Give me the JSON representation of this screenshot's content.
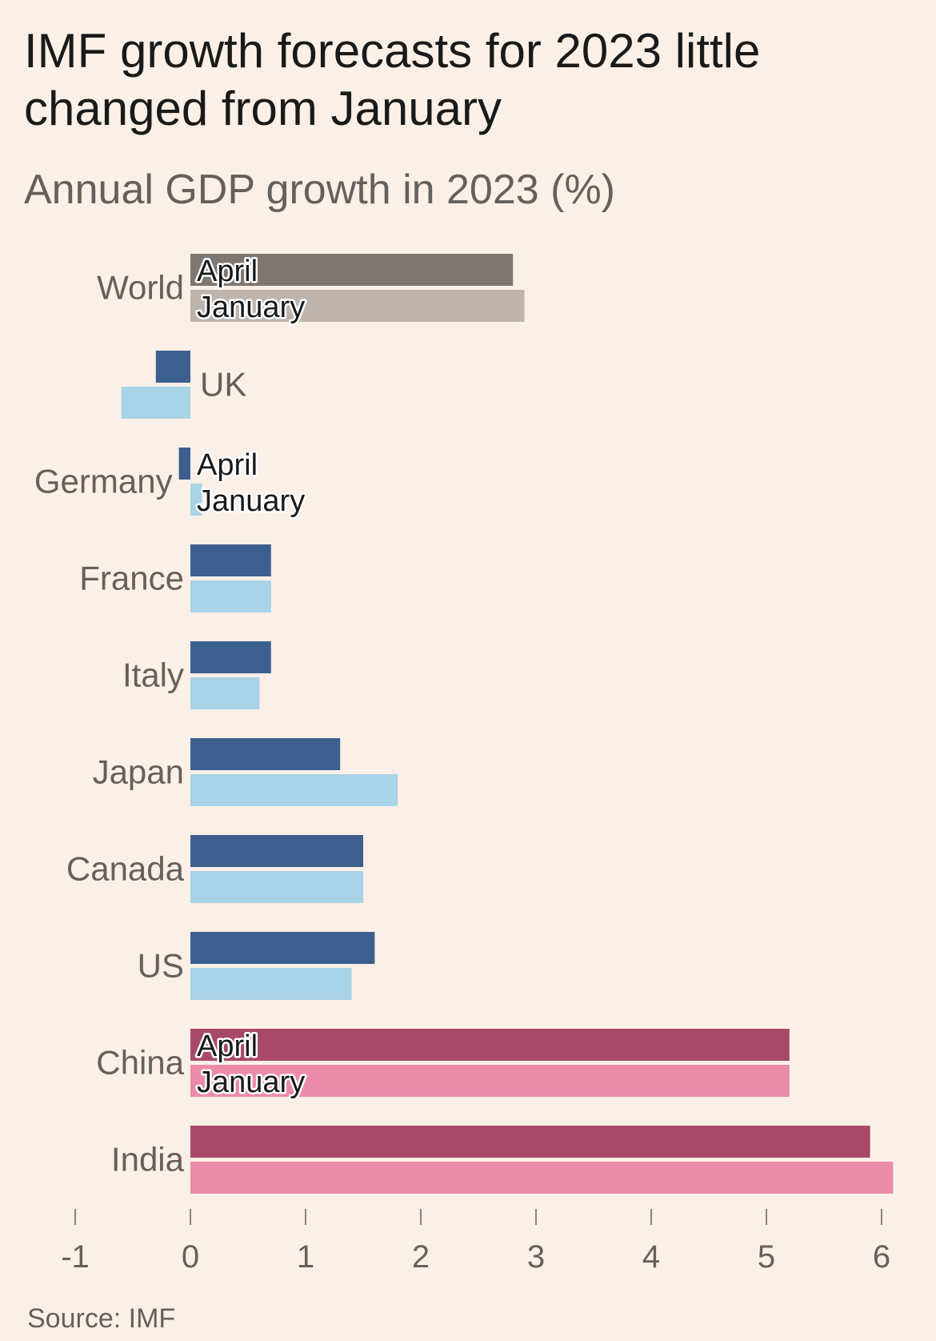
{
  "chart_data": {
    "type": "bar",
    "orientation": "horizontal",
    "title": "IMF growth forecasts for 2023 little changed from January",
    "subtitle": "Annual GDP growth in 2023 (%)",
    "source": "Source: IMF",
    "categories": [
      "World",
      "UK",
      "Germany",
      "France",
      "Italy",
      "Japan",
      "Canada",
      "US",
      "China",
      "India"
    ],
    "series": [
      {
        "name": "April",
        "values": [
          2.8,
          -0.3,
          -0.1,
          0.7,
          0.7,
          1.3,
          1.5,
          1.6,
          5.2,
          5.9
        ]
      },
      {
        "name": "January",
        "values": [
          2.9,
          -0.6,
          0.1,
          0.7,
          0.6,
          1.8,
          1.5,
          1.4,
          5.2,
          6.1
        ]
      }
    ],
    "series_labels_shown_for": [
      "World",
      "Germany",
      "China"
    ],
    "xlim": [
      -1,
      6
    ],
    "xticks": [
      -1,
      0,
      1,
      2,
      3,
      4,
      5,
      6
    ],
    "grid": false,
    "colors": {
      "world_april": "#7d7671",
      "world_january": "#bdb4ad",
      "europe_april": "#3d5f8f",
      "europe_january": "#a9d3e6",
      "asia_april": "#a8496a",
      "asia_january": "#ec8aaa"
    },
    "category_color_groups": {
      "World": "world",
      "UK": "europe",
      "Germany": "europe",
      "France": "europe",
      "Italy": "europe",
      "Japan": "europe",
      "Canada": "europe",
      "US": "europe",
      "China": "asia",
      "India": "asia"
    }
  }
}
